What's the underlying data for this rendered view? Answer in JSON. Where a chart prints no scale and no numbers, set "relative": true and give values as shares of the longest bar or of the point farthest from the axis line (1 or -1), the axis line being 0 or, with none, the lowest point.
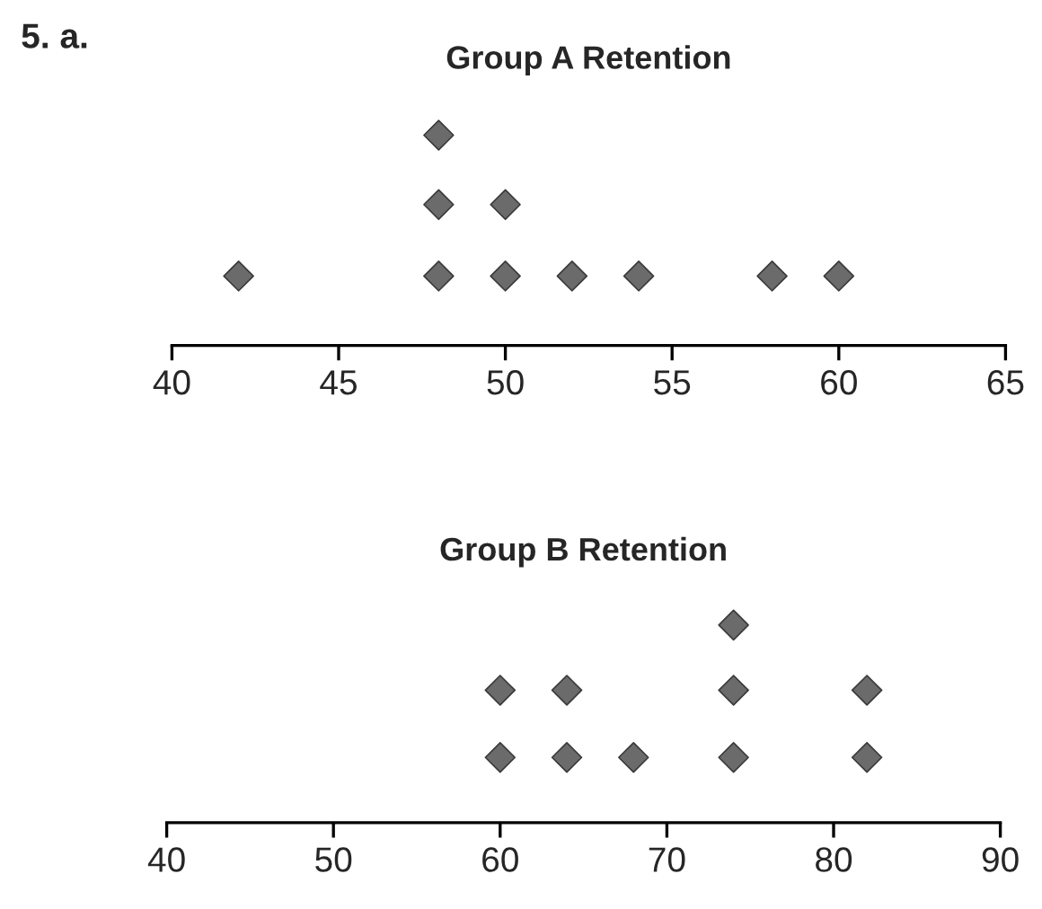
{
  "chart_data": [
    {
      "type": "scatter",
      "title": "Group A Retention",
      "annotations": [
        "5. a."
      ],
      "relative": true,
      "marker": "diamond",
      "tick_labels": "x",
      "xlim": [
        40,
        65
      ],
      "xticks": [
        40,
        45,
        50,
        55,
        60,
        65
      ],
      "series": [
        {
          "color": "#6b6b6b",
          "x": [
            42,
            48,
            48,
            48,
            50,
            50,
            52,
            54,
            58,
            60
          ],
          "values": [
            0.33,
            0.33,
            0.67,
            1,
            0.33,
            0.67,
            0.33,
            0.33,
            0.33,
            0.33
          ]
        }
      ]
    },
    {
      "type": "scatter",
      "title": "Group B Retention",
      "relative": true,
      "marker": "diamond",
      "tick_labels": "x",
      "xlim": [
        40,
        90
      ],
      "xticks": [
        40,
        50,
        60,
        70,
        80,
        90
      ],
      "series": [
        {
          "color": "#6b6b6b",
          "x": [
            60,
            60,
            64,
            64,
            68,
            74,
            74,
            74,
            82,
            82
          ],
          "values": [
            0.33,
            0.67,
            0.33,
            0.67,
            0.33,
            0.33,
            0.67,
            1,
            0.33,
            0.67
          ]
        }
      ]
    }
  ]
}
